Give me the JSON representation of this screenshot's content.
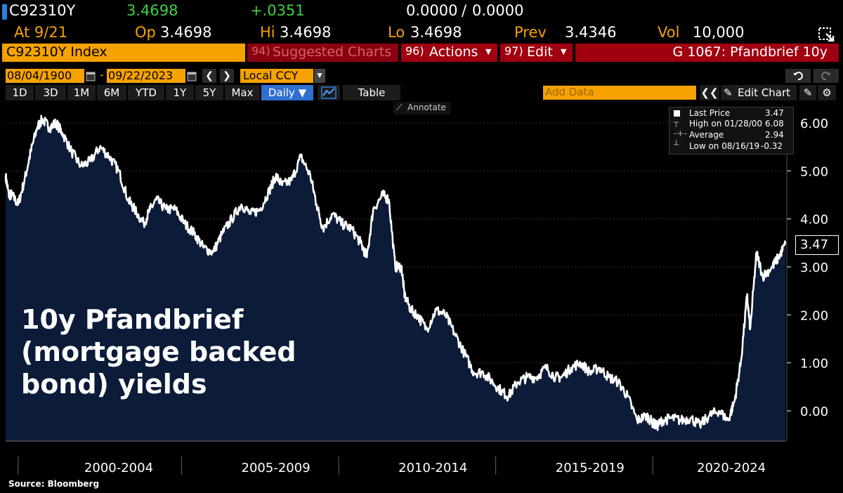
{
  "header": {
    "ticker": "C92310Y",
    "last": "3.4698",
    "change": "+.0351",
    "bidask_bid": "0.0000",
    "bidask_sep": "/",
    "bidask_ask": "0.0000",
    "at": "At 9/21",
    "op_label": "Op",
    "op": "3.4698",
    "hi_label": "Hi",
    "hi": "3.4698",
    "lo_label": "Lo",
    "lo": "3.4698",
    "prev_label": "Prev",
    "prev": "3.4346",
    "vol_label": "Vol",
    "vol": "10,000"
  },
  "toolbar": {
    "index_name": "C92310Y Index",
    "suggested_num": "94)",
    "suggested": "Suggested Charts",
    "actions_num": "96)",
    "actions": "Actions",
    "edit_num": "97)",
    "edit": "Edit",
    "graph_title": "G 1067: Pfandbrief 10y"
  },
  "range": {
    "start": "08/04/1900",
    "dash": "-",
    "end": "09/22/2023",
    "currency": "Local CCY"
  },
  "periods": [
    "1D",
    "3D",
    "1M",
    "6M",
    "YTD",
    "1Y",
    "5Y",
    "Max"
  ],
  "frequency": "Daily ▼",
  "table_label": "Table",
  "add_data_placeholder": "Add Data",
  "edit_chart": "Edit Chart",
  "annotate": "Annotate",
  "legend": {
    "last_label": "Last Price",
    "last_value": "3.47",
    "high_label": "High on 01/28/00",
    "high_value": "6.08",
    "avg_label": "Average",
    "avg_value": "2.94",
    "low_label": "Low on 08/16/19",
    "low_value": "-0.32"
  },
  "overlay_title": [
    "10y Pfandbrief",
    "(mortgage backed",
    "bond) yields"
  ],
  "source": "Source: Bloomberg",
  "last_tag": "3.47",
  "colors": {
    "amber": "#f5a200",
    "green": "#3fd13f",
    "red_bar": "#a00010",
    "area_fill": "#0b1b38",
    "line": "#ffffff"
  },
  "chart_data": {
    "type": "area",
    "y_ticks": [
      "6.00",
      "5.00",
      "4.00",
      "3.00",
      "2.00",
      "1.00",
      "0.00"
    ],
    "y_tick_values": [
      6,
      5,
      4,
      3,
      2,
      1,
      0
    ],
    "ylim": [
      -0.6,
      6.6
    ],
    "xlim": [
      1998.9,
      2023.72
    ],
    "x_group_labels": [
      "2000-2004",
      "2005-2009",
      "2010-2014",
      "2015-2019",
      "2020-2024"
    ],
    "x_group_centers": [
      2002.5,
      2007.5,
      2012.5,
      2017.5,
      2022.0
    ],
    "x_group_separators": [
      1999.3,
      2004.5,
      2009.5,
      2014.5,
      2019.5
    ],
    "series": [
      {
        "x": [
          1998.9,
          1999.0,
          1999.1,
          1999.3,
          1999.5,
          1999.7,
          1999.9,
          2000.07,
          2000.3,
          2000.5,
          2000.7,
          2001.0,
          2001.3,
          2001.6,
          2001.9,
          2002.2,
          2002.5,
          2002.8,
          2003.0,
          2003.3,
          2003.5,
          2003.7,
          2004.0,
          2004.3,
          2004.6,
          2004.9,
          2005.2,
          2005.5,
          2005.8,
          2006.1,
          2006.4,
          2006.7,
          2007.0,
          2007.3,
          2007.5,
          2007.7,
          2008.0,
          2008.3,
          2008.6,
          2008.8,
          2009.0,
          2009.3,
          2009.6,
          2009.9,
          2010.2,
          2010.4,
          2010.6,
          2010.9,
          2011.1,
          2011.3,
          2011.5,
          2011.6,
          2011.8,
          2012.0,
          2012.3,
          2012.6,
          2012.9,
          2013.2,
          2013.5,
          2013.8,
          2014.1,
          2014.4,
          2014.7,
          2014.9,
          2015.2,
          2015.5,
          2015.8,
          2016.1,
          2016.4,
          2016.6,
          2016.9,
          2017.2,
          2017.5,
          2017.8,
          2018.1,
          2018.4,
          2018.7,
          2019.0,
          2019.3,
          2019.5,
          2019.63,
          2019.8,
          2020.1,
          2020.4,
          2020.7,
          2021.0,
          2021.3,
          2021.6,
          2021.9,
          2022.1,
          2022.3,
          2022.5,
          2022.6,
          2022.8,
          2023.0,
          2023.3,
          2023.5,
          2023.72
        ],
        "y": [
          4.9,
          4.5,
          4.5,
          4.3,
          4.8,
          5.4,
          5.9,
          6.08,
          5.9,
          6.0,
          5.8,
          5.4,
          5.1,
          5.2,
          5.5,
          5.3,
          5.0,
          4.4,
          4.2,
          3.9,
          4.2,
          4.4,
          4.2,
          4.2,
          3.9,
          3.7,
          3.4,
          3.3,
          3.7,
          4.0,
          4.3,
          4.1,
          4.2,
          4.6,
          4.9,
          4.7,
          4.8,
          5.3,
          4.9,
          4.3,
          3.8,
          4.1,
          3.9,
          3.8,
          3.5,
          3.2,
          4.2,
          4.5,
          4.4,
          3.0,
          3.0,
          2.4,
          2.1,
          2.0,
          1.7,
          2.1,
          2.0,
          1.6,
          1.2,
          0.8,
          0.8,
          0.6,
          0.4,
          0.3,
          0.6,
          0.7,
          0.7,
          0.9,
          0.7,
          0.7,
          0.9,
          1.0,
          0.8,
          0.9,
          0.7,
          0.6,
          0.3,
          -0.2,
          -0.1,
          -0.25,
          -0.32,
          -0.2,
          -0.15,
          -0.2,
          -0.15,
          -0.3,
          -0.1,
          0.0,
          -0.2,
          0.2,
          1.0,
          2.4,
          1.7,
          3.3,
          2.8,
          3.0,
          3.2,
          3.47
        ]
      }
    ]
  }
}
